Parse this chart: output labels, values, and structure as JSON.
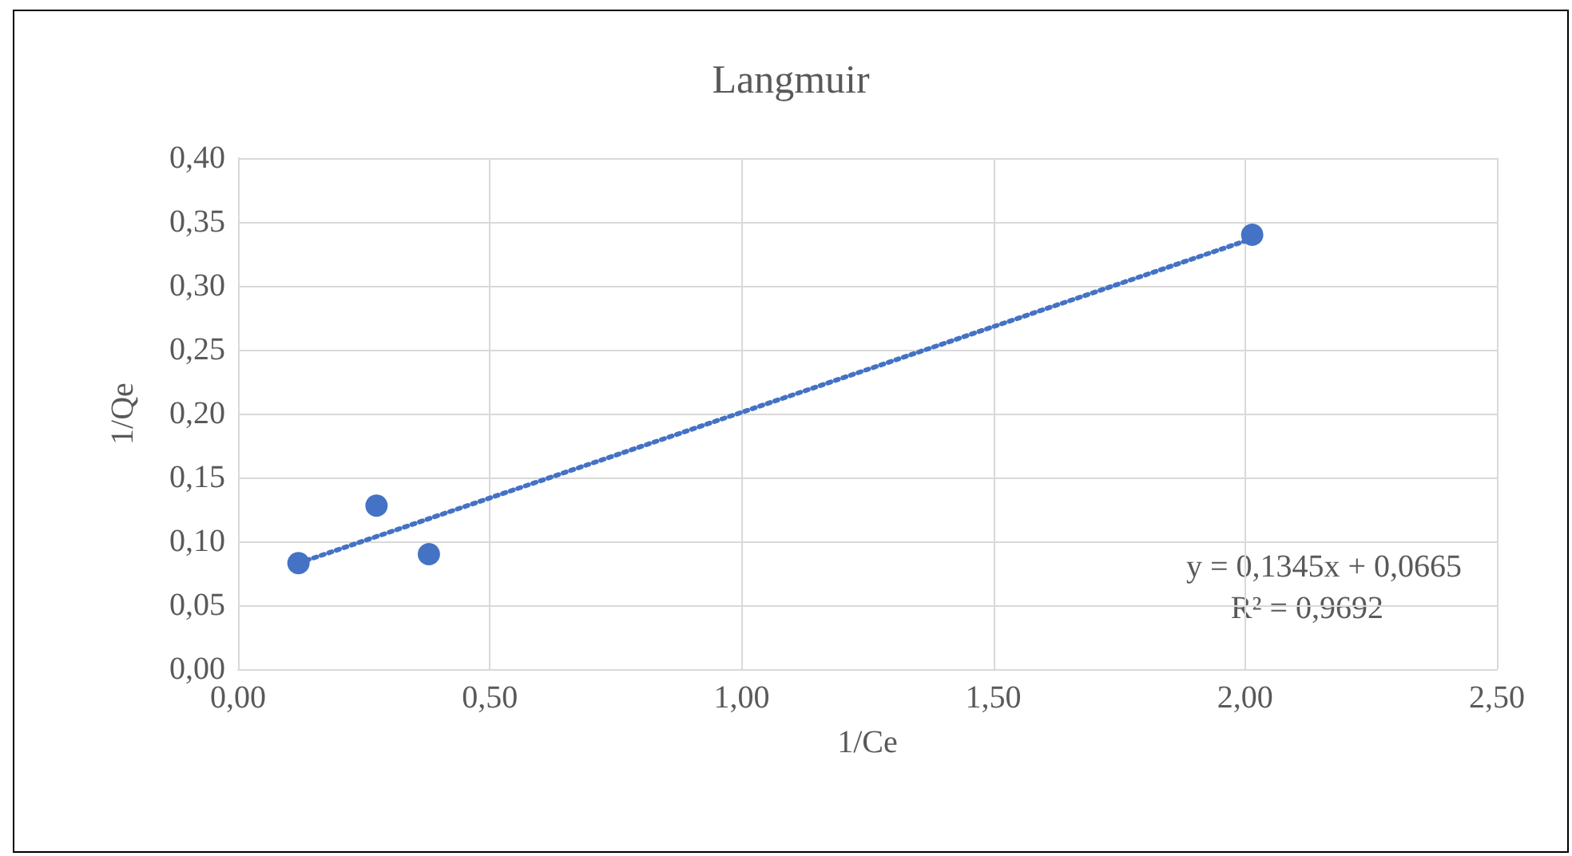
{
  "chart_data": {
    "type": "scatter",
    "title": "Langmuir",
    "xlabel": "1/Ce",
    "ylabel": "1/Qe",
    "series": [
      {
        "color": "#4472c4",
        "marker": "circle",
        "x": [
          0.12,
          0.275,
          0.379,
          2.014
        ],
        "values": [
          0.083,
          0.128,
          0.09,
          0.34
        ]
      },
      {
        "type": "line",
        "color": "#4472c4",
        "marker": "none",
        "line_style": "dotted",
        "x": [
          0.12,
          2.014
        ],
        "values": [
          0.083,
          0.337
        ]
      }
    ],
    "xlim": [
      0,
      2.5
    ],
    "xticks": [
      {
        "value": 0,
        "label": "0,00"
      },
      {
        "value": 0.5,
        "label": "0,50"
      },
      {
        "value": 1,
        "label": "1,00"
      },
      {
        "value": 1.5,
        "label": "1,50"
      },
      {
        "value": 2,
        "label": "2,00"
      },
      {
        "value": 2.5,
        "label": "2,50"
      }
    ],
    "ylim": [
      0,
      0.4
    ],
    "yticks": [
      {
        "value": 0,
        "label": "0,00"
      },
      {
        "value": 0.05,
        "label": "0,05"
      },
      {
        "value": 0.1,
        "label": "0,10"
      },
      {
        "value": 0.15,
        "label": "0,15"
      },
      {
        "value": 0.2,
        "label": "0,20"
      },
      {
        "value": 0.25,
        "label": "0,25"
      },
      {
        "value": 0.3,
        "label": "0,30"
      },
      {
        "value": 0.35,
        "label": "0,35"
      },
      {
        "value": 0.4,
        "label": "0,40"
      }
    ],
    "grid": true,
    "annotations": [
      "y = 0,1345x + 0,0665",
      "R² = 0,9692"
    ]
  }
}
